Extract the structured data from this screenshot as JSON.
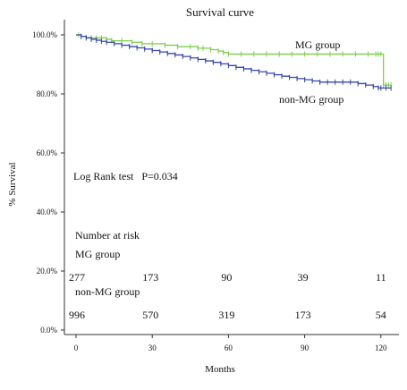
{
  "chart_data": {
    "type": "line",
    "title": "Survival curve",
    "xlabel": "Months",
    "ylabel": "% Survival",
    "xlim": [
      0,
      125
    ],
    "ylim": [
      0,
      100
    ],
    "xticks": [
      0,
      30,
      60,
      90,
      120
    ],
    "xtick_labels": [
      "0",
      "30",
      "60",
      "90",
      "120"
    ],
    "yticks": [
      0,
      20,
      40,
      60,
      80,
      100
    ],
    "ytick_labels": [
      "0.0%",
      "20.0%",
      "40.0%",
      "60.0%",
      "80.0%",
      "100.0%"
    ],
    "grid": false,
    "series": [
      {
        "name": "MG group",
        "color": "#7ccf4f",
        "x": [
          0,
          1,
          2,
          4,
          6,
          8,
          10,
          12,
          14,
          18,
          22,
          26,
          30,
          35,
          40,
          45,
          48,
          50,
          53,
          56,
          58,
          60,
          65,
          70,
          75,
          80,
          85,
          90,
          95,
          100,
          105,
          110,
          115,
          118,
          119,
          120,
          121,
          122,
          123,
          124
        ],
        "y": [
          100,
          100,
          99.5,
          99,
          99,
          99,
          99,
          98.5,
          98,
          98,
          97.5,
          97,
          97,
          96.5,
          96,
          96,
          95.5,
          95.5,
          95,
          94.5,
          94,
          93.5,
          93.5,
          93.5,
          93.5,
          93.5,
          93.5,
          93.5,
          93.5,
          93.5,
          93.5,
          93.5,
          93.5,
          93.5,
          93.5,
          93.5,
          83,
          83,
          83,
          83
        ]
      },
      {
        "name": "non-MG group",
        "color": "#3949a8",
        "x": [
          0,
          2,
          4,
          6,
          8,
          10,
          12,
          15,
          18,
          21,
          24,
          27,
          30,
          33,
          36,
          39,
          42,
          45,
          48,
          51,
          54,
          57,
          60,
          63,
          66,
          69,
          72,
          75,
          78,
          81,
          84,
          87,
          90,
          93,
          96,
          99,
          102,
          105,
          108,
          111,
          114,
          117,
          119,
          120,
          122,
          124
        ],
        "y": [
          100,
          99.5,
          99,
          98.5,
          98.2,
          97.8,
          97.5,
          97,
          96.5,
          96,
          95.6,
          95.2,
          94.7,
          94.2,
          93.7,
          93.2,
          92.7,
          92.2,
          91.7,
          91.2,
          90.7,
          90.2,
          89.6,
          89,
          88.5,
          88,
          87.5,
          87,
          86.5,
          86,
          85.6,
          85.2,
          84.8,
          84.4,
          84,
          84,
          84,
          84,
          84,
          83.5,
          83,
          82.5,
          82,
          82,
          82,
          82
        ]
      }
    ],
    "annotations": {
      "mg_label": "MG group",
      "non_mg_label": "non-MG group",
      "log_rank": "Log Rank test   P=0.034"
    },
    "risk_table": {
      "title": "Number at risk",
      "groups": [
        {
          "label": "MG group",
          "counts": [
            "277",
            "173",
            "90",
            "39",
            "11"
          ]
        },
        {
          "label": "non-MG group",
          "counts": [
            "996",
            "570",
            "319",
            "173",
            "54"
          ]
        }
      ]
    }
  }
}
